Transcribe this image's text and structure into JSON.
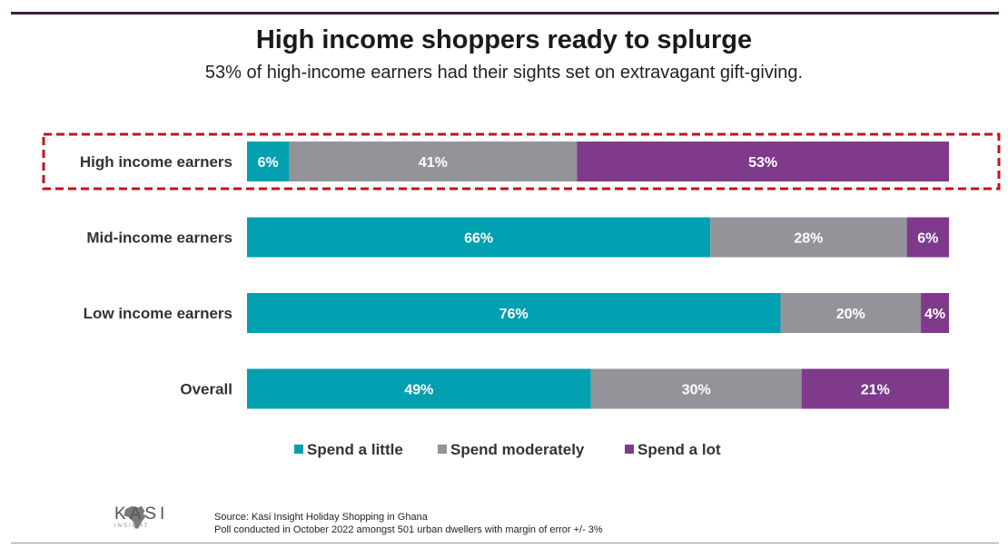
{
  "colors": {
    "little": "#00a0b0",
    "moderate": "#939399",
    "lot": "#7f3a8c",
    "highlight": "#c0141c"
  },
  "source": {
    "line1": "Source: Kasi Insight Holiday Shopping in Ghana",
    "line2": "Poll conducted in October 2022 amongst 501 urban dwellers with margin of error +/- 3%"
  },
  "logo": {
    "text": "KASI",
    "sub": "INSIGHT"
  },
  "chart_data": {
    "type": "bar",
    "orientation": "horizontal-stacked-100",
    "title": "High income shoppers ready to splurge",
    "subtitle": "53% of high-income earners had their sights set on extravagant gift-giving.",
    "categories": [
      "High income earners",
      "Mid-income earners",
      "Low income earners",
      "Overall"
    ],
    "series": [
      {
        "name": "Spend a little",
        "key": "little",
        "values": [
          6,
          66,
          76,
          49
        ]
      },
      {
        "name": "Spend moderately",
        "key": "moderate",
        "values": [
          41,
          28,
          20,
          30
        ]
      },
      {
        "name": "Spend a lot",
        "key": "lot",
        "values": [
          53,
          6,
          4,
          21
        ]
      }
    ],
    "value_suffix": "%",
    "highlighted_category": "High income earners",
    "legend": "bottom-center",
    "xlim": [
      0,
      100
    ],
    "grid": false
  }
}
